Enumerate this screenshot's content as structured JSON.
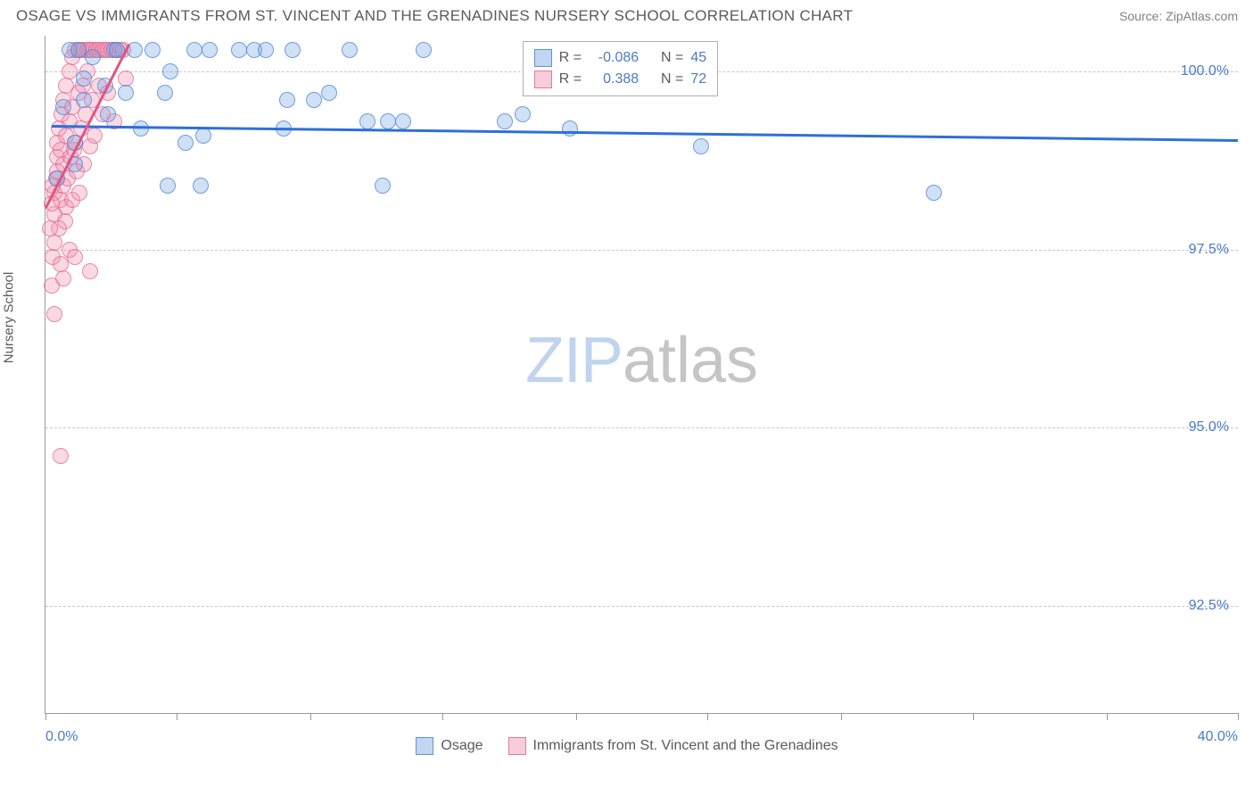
{
  "title": "OSAGE VS IMMIGRANTS FROM ST. VINCENT AND THE GRENADINES NURSERY SCHOOL CORRELATION CHART",
  "source": "Source: ZipAtlas.com",
  "y_axis_label": "Nursery School",
  "watermark_a": "ZIP",
  "watermark_b": "atlas",
  "chart": {
    "type": "scatter",
    "xlim": [
      0.0,
      40.0
    ],
    "ylim": [
      91.0,
      100.5
    ],
    "y_ticks": [
      92.5,
      95.0,
      97.5,
      100.0
    ],
    "y_tick_labels": [
      "92.5%",
      "95.0%",
      "97.5%",
      "100.0%"
    ],
    "x_ticks": [
      0,
      4.4,
      8.9,
      13.3,
      17.8,
      22.2,
      26.7,
      31.1,
      35.6,
      40.0
    ],
    "x_tick_labels_shown": {
      "0": "0.0%",
      "40": "40.0%"
    },
    "grid_color": "#c8c8c8",
    "axis_color": "#9a9a9a",
    "background_color": "#ffffff",
    "series": {
      "blue": {
        "label": "Osage",
        "fill": "rgba(120,165,225,0.35)",
        "stroke": "rgba(70,130,210,0.7)",
        "trend_color": "#2d70d8",
        "R": "-0.086",
        "N": "45",
        "trend": {
          "x1": 0.2,
          "y1": 99.25,
          "x2": 40.0,
          "y2": 99.05
        },
        "points": [
          [
            0.6,
            99.5
          ],
          [
            0.8,
            100.3
          ],
          [
            1.0,
            99.0
          ],
          [
            1.1,
            100.3
          ],
          [
            1.3,
            99.6
          ],
          [
            1.3,
            99.9
          ],
          [
            1.6,
            100.2
          ],
          [
            2.0,
            99.8
          ],
          [
            2.1,
            99.4
          ],
          [
            2.3,
            100.3
          ],
          [
            2.4,
            100.3
          ],
          [
            2.7,
            99.7
          ],
          [
            3.0,
            100.3
          ],
          [
            3.2,
            99.2
          ],
          [
            3.6,
            100.3
          ],
          [
            4.0,
            99.7
          ],
          [
            4.1,
            98.4
          ],
          [
            4.2,
            100.0
          ],
          [
            4.7,
            99.0
          ],
          [
            5.0,
            100.3
          ],
          [
            5.2,
            98.4
          ],
          [
            5.3,
            99.1
          ],
          [
            5.5,
            100.3
          ],
          [
            6.5,
            100.3
          ],
          [
            7.0,
            100.3
          ],
          [
            7.4,
            100.3
          ],
          [
            8.0,
            99.2
          ],
          [
            8.1,
            99.6
          ],
          [
            8.3,
            100.3
          ],
          [
            9.0,
            99.6
          ],
          [
            9.5,
            99.7
          ],
          [
            10.2,
            100.3
          ],
          [
            10.8,
            99.3
          ],
          [
            11.3,
            98.4
          ],
          [
            11.5,
            99.3
          ],
          [
            12.0,
            99.3
          ],
          [
            12.7,
            100.3
          ],
          [
            15.4,
            99.3
          ],
          [
            16.0,
            99.4
          ],
          [
            17.6,
            99.2
          ],
          [
            19.5,
            100.0
          ],
          [
            22.0,
            98.95
          ],
          [
            29.8,
            98.3
          ],
          [
            0.4,
            98.5
          ],
          [
            1.0,
            98.7
          ]
        ]
      },
      "pink": {
        "label": "Immigrants from St. Vincent and the Grenadines",
        "fill": "rgba(240,145,175,0.35)",
        "stroke": "rgba(225,100,145,0.7)",
        "trend_color": "#e05585",
        "R": "0.388",
        "N": "72",
        "trend": {
          "x1": 0.0,
          "y1": 98.1,
          "x2": 2.8,
          "y2": 100.4
        },
        "points": [
          [
            0.2,
            97.0
          ],
          [
            0.25,
            97.4
          ],
          [
            0.3,
            97.6
          ],
          [
            0.3,
            98.0
          ],
          [
            0.3,
            98.3
          ],
          [
            0.35,
            98.5
          ],
          [
            0.4,
            98.6
          ],
          [
            0.4,
            98.8
          ],
          [
            0.4,
            99.0
          ],
          [
            0.45,
            97.8
          ],
          [
            0.45,
            99.2
          ],
          [
            0.5,
            97.3
          ],
          [
            0.5,
            98.2
          ],
          [
            0.5,
            98.9
          ],
          [
            0.55,
            99.4
          ],
          [
            0.6,
            98.4
          ],
          [
            0.6,
            98.7
          ],
          [
            0.6,
            99.6
          ],
          [
            0.65,
            97.9
          ],
          [
            0.7,
            98.1
          ],
          [
            0.7,
            99.1
          ],
          [
            0.7,
            99.8
          ],
          [
            0.75,
            98.5
          ],
          [
            0.8,
            97.5
          ],
          [
            0.8,
            99.3
          ],
          [
            0.8,
            100.0
          ],
          [
            0.85,
            98.8
          ],
          [
            0.9,
            98.2
          ],
          [
            0.9,
            99.5
          ],
          [
            0.9,
            100.2
          ],
          [
            0.95,
            98.9
          ],
          [
            1.0,
            99.0
          ],
          [
            1.0,
            100.3
          ],
          [
            1.05,
            98.6
          ],
          [
            1.1,
            99.7
          ],
          [
            1.1,
            100.3
          ],
          [
            1.15,
            98.3
          ],
          [
            1.2,
            99.2
          ],
          [
            1.2,
            100.3
          ],
          [
            1.25,
            99.8
          ],
          [
            1.3,
            98.7
          ],
          [
            1.3,
            100.3
          ],
          [
            1.35,
            99.4
          ],
          [
            1.4,
            100.0
          ],
          [
            1.4,
            100.3
          ],
          [
            1.5,
            98.95
          ],
          [
            1.5,
            100.3
          ],
          [
            1.55,
            99.6
          ],
          [
            1.6,
            100.3
          ],
          [
            1.65,
            99.1
          ],
          [
            1.7,
            100.3
          ],
          [
            1.8,
            99.8
          ],
          [
            1.8,
            100.3
          ],
          [
            1.9,
            99.4
          ],
          [
            1.9,
            100.3
          ],
          [
            2.0,
            100.3
          ],
          [
            2.1,
            99.7
          ],
          [
            2.1,
            100.3
          ],
          [
            2.2,
            100.3
          ],
          [
            2.3,
            99.3
          ],
          [
            2.4,
            100.3
          ],
          [
            2.5,
            100.3
          ],
          [
            2.6,
            100.3
          ],
          [
            2.7,
            99.9
          ],
          [
            0.3,
            96.6
          ],
          [
            0.6,
            97.1
          ],
          [
            1.0,
            97.4
          ],
          [
            1.5,
            97.2
          ],
          [
            0.5,
            94.6
          ],
          [
            0.2,
            98.15
          ],
          [
            0.25,
            98.4
          ],
          [
            0.15,
            97.8
          ]
        ]
      }
    }
  },
  "legend_stats": {
    "r_label": "R =",
    "n_label": "N ="
  }
}
